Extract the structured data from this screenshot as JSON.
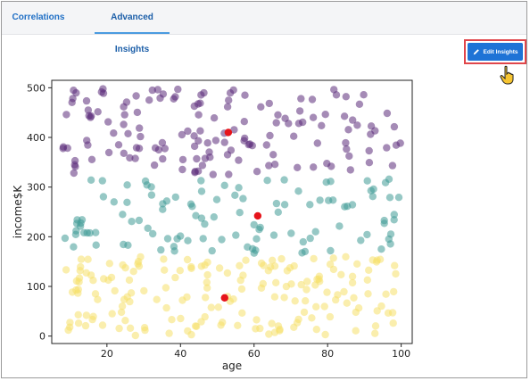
{
  "tabs": [
    {
      "label": "Correlations",
      "active": false
    },
    {
      "label": "Advanced Insights",
      "active": true
    }
  ],
  "edit_button": {
    "label": "Edit Insights",
    "icon": "pencil-icon"
  },
  "colors": {
    "accent": "#1e73d6",
    "highlight_border": "#e0464b",
    "purple": "#5b2c7a",
    "teal": "#3f9a96",
    "yellow": "#f5e06a",
    "marker": "#e6141b"
  },
  "chart_data": {
    "type": "scatter",
    "xlabel": "age",
    "ylabel": "income$K",
    "xlim": [
      5,
      103
    ],
    "ylim": [
      -15,
      515
    ],
    "xticks": [
      20,
      40,
      60,
      80,
      100
    ],
    "yticks": [
      0,
      100,
      200,
      300,
      400,
      500
    ],
    "grid": false,
    "clusters": [
      {
        "color": "purple",
        "y_range": [
          325,
          500
        ],
        "count": 150
      },
      {
        "color": "teal",
        "y_range": [
          165,
          320
        ],
        "count": 110
      },
      {
        "color": "yellow",
        "y_range": [
          0,
          160
        ],
        "count": 180
      }
    ],
    "highlighted_points": [
      {
        "x": 53,
        "y": 410
      },
      {
        "x": 61,
        "y": 242
      },
      {
        "x": 52,
        "y": 77
      }
    ]
  }
}
